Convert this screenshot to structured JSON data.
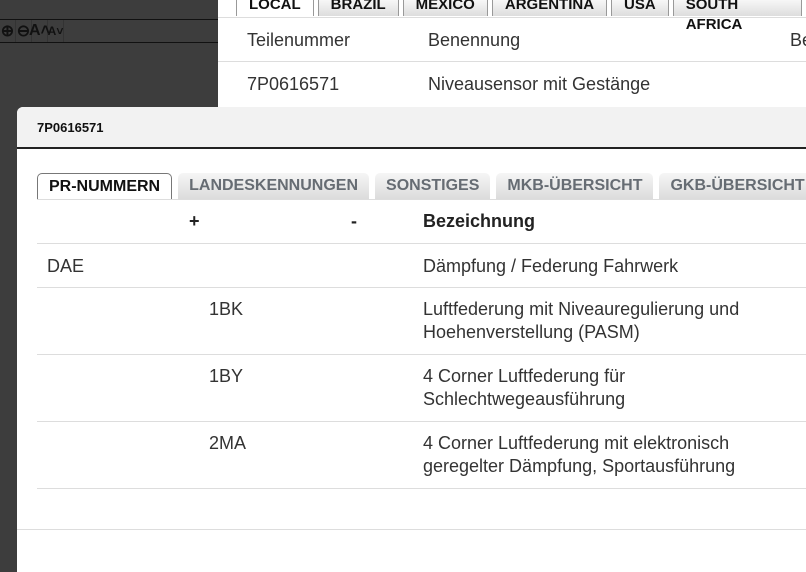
{
  "toolbar": {
    "icons": [
      "zoom-in-icon",
      "zoom-out-icon",
      "font-increase-icon",
      "font-decrease-icon"
    ],
    "zoom_in": "⊕",
    "zoom_out": "⊖",
    "font_up": "A˄",
    "font_down": "A˅"
  },
  "country_tabs": [
    "LOCAL",
    "BRAZIL",
    "MEXICO",
    "ARGENTINA",
    "USA",
    "SOUTH AFRICA"
  ],
  "parts_table": {
    "headers": [
      "Teilenummer",
      "Benennung",
      "Be"
    ],
    "rows": [
      [
        "7P0616571",
        "Niveausensor mit Gestänge"
      ]
    ]
  },
  "modal": {
    "title": "7P0616571",
    "tabs": [
      "PR-NUMMERN",
      "LANDESKENNUNGEN",
      "SONSTIGES",
      "MKB-ÜBERSICHT",
      "GKB-ÜBERSICHT"
    ],
    "table": {
      "headers": [
        "",
        "+",
        "-",
        "Bezeichnung"
      ],
      "rows": [
        {
          "code": "DAE",
          "plus": "",
          "minus": "",
          "desc": [
            "Dämpfung / Federung Fahrwerk"
          ]
        },
        {
          "code": "",
          "plus": "1BK",
          "minus": "",
          "desc": [
            "Luftfederung mit Niveauregulierung und",
            "Hoehenverstellung (PASM)"
          ]
        },
        {
          "code": "",
          "plus": "1BY",
          "minus": "",
          "desc": [
            "4 Corner Luftfederung für",
            "Schlechtwegeausführung"
          ]
        },
        {
          "code": "",
          "plus": "2MA",
          "minus": "",
          "desc": [
            "4 Corner Luftfederung mit elektronisch",
            "geregelter Dämpfung, Sportausführung"
          ]
        }
      ]
    }
  }
}
